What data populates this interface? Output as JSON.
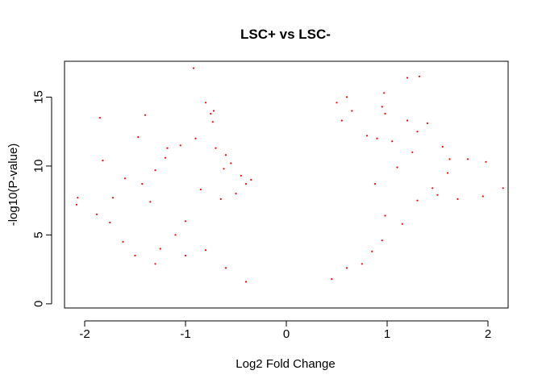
{
  "chart_data": {
    "type": "scatter",
    "title": "LSC+ vs LSC-",
    "xlabel": "Log2 Fold Change",
    "ylabel": "-log10(P-value)",
    "xlim": [
      -2.2,
      2.2
    ],
    "ylim": [
      -0.3,
      17.6
    ],
    "x_ticks": [
      -2,
      -1,
      0,
      1,
      2
    ],
    "x_tick_labels": [
      "-2",
      "-1",
      "0",
      "1",
      "2"
    ],
    "y_ticks": [
      0,
      5,
      10,
      15
    ],
    "y_tick_labels": [
      "0",
      "5",
      "10",
      "15"
    ],
    "grid": false,
    "legend": "none",
    "point_color": "#ff0000",
    "series": [
      {
        "points": [
          [
            -2.07,
            7.7
          ],
          [
            -2.08,
            7.2
          ],
          [
            -1.85,
            13.5
          ],
          [
            -1.82,
            10.4
          ],
          [
            -1.88,
            6.5
          ],
          [
            -1.75,
            5.9
          ],
          [
            -1.72,
            7.7
          ],
          [
            -1.62,
            4.5
          ],
          [
            -1.6,
            9.1
          ],
          [
            -1.47,
            12.1
          ],
          [
            -1.4,
            13.7
          ],
          [
            -1.43,
            8.7
          ],
          [
            -1.35,
            7.4
          ],
          [
            -1.3,
            9.7
          ],
          [
            -1.2,
            10.6
          ],
          [
            -1.18,
            11.3
          ],
          [
            -1.05,
            11.5
          ],
          [
            -0.92,
            17.1
          ],
          [
            -0.9,
            12.0
          ],
          [
            -0.8,
            14.6
          ],
          [
            -0.75,
            13.8
          ],
          [
            -0.73,
            13.2
          ],
          [
            -0.72,
            14.0
          ],
          [
            -0.7,
            11.3
          ],
          [
            -0.62,
            9.8
          ],
          [
            -0.6,
            10.8
          ],
          [
            -0.55,
            10.2
          ],
          [
            -0.45,
            9.3
          ],
          [
            -0.4,
            8.7
          ],
          [
            -0.35,
            9.0
          ],
          [
            -0.5,
            8.0
          ],
          [
            -0.65,
            7.6
          ],
          [
            -0.85,
            8.3
          ],
          [
            -1.0,
            6.0
          ],
          [
            -1.1,
            5.0
          ],
          [
            -1.25,
            4.0
          ],
          [
            -1.5,
            3.5
          ],
          [
            -1.3,
            2.9
          ],
          [
            -1.0,
            3.5
          ],
          [
            -0.8,
            3.9
          ],
          [
            -0.4,
            1.6
          ],
          [
            -0.6,
            2.6
          ],
          [
            1.2,
            16.4
          ],
          [
            1.32,
            16.5
          ],
          [
            0.97,
            15.3
          ],
          [
            0.95,
            14.3
          ],
          [
            0.98,
            13.8
          ],
          [
            0.6,
            15.0
          ],
          [
            0.5,
            14.6
          ],
          [
            0.65,
            14.0
          ],
          [
            0.55,
            13.3
          ],
          [
            1.4,
            13.1
          ],
          [
            1.2,
            13.3
          ],
          [
            1.3,
            12.5
          ],
          [
            1.55,
            11.4
          ],
          [
            1.62,
            10.5
          ],
          [
            1.8,
            10.5
          ],
          [
            1.98,
            10.3
          ],
          [
            2.15,
            8.4
          ],
          [
            1.95,
            7.8
          ],
          [
            1.45,
            8.4
          ],
          [
            1.5,
            7.9
          ],
          [
            1.6,
            9.5
          ],
          [
            1.7,
            7.6
          ],
          [
            1.25,
            11.0
          ],
          [
            1.05,
            11.8
          ],
          [
            0.9,
            12.0
          ],
          [
            0.8,
            12.2
          ],
          [
            1.1,
            9.9
          ],
          [
            1.3,
            7.5
          ],
          [
            0.98,
            6.4
          ],
          [
            1.15,
            5.8
          ],
          [
            0.95,
            4.6
          ],
          [
            0.85,
            3.8
          ],
          [
            0.75,
            2.9
          ],
          [
            0.6,
            2.6
          ],
          [
            0.45,
            1.8
          ],
          [
            0.88,
            8.7
          ]
        ]
      }
    ]
  }
}
